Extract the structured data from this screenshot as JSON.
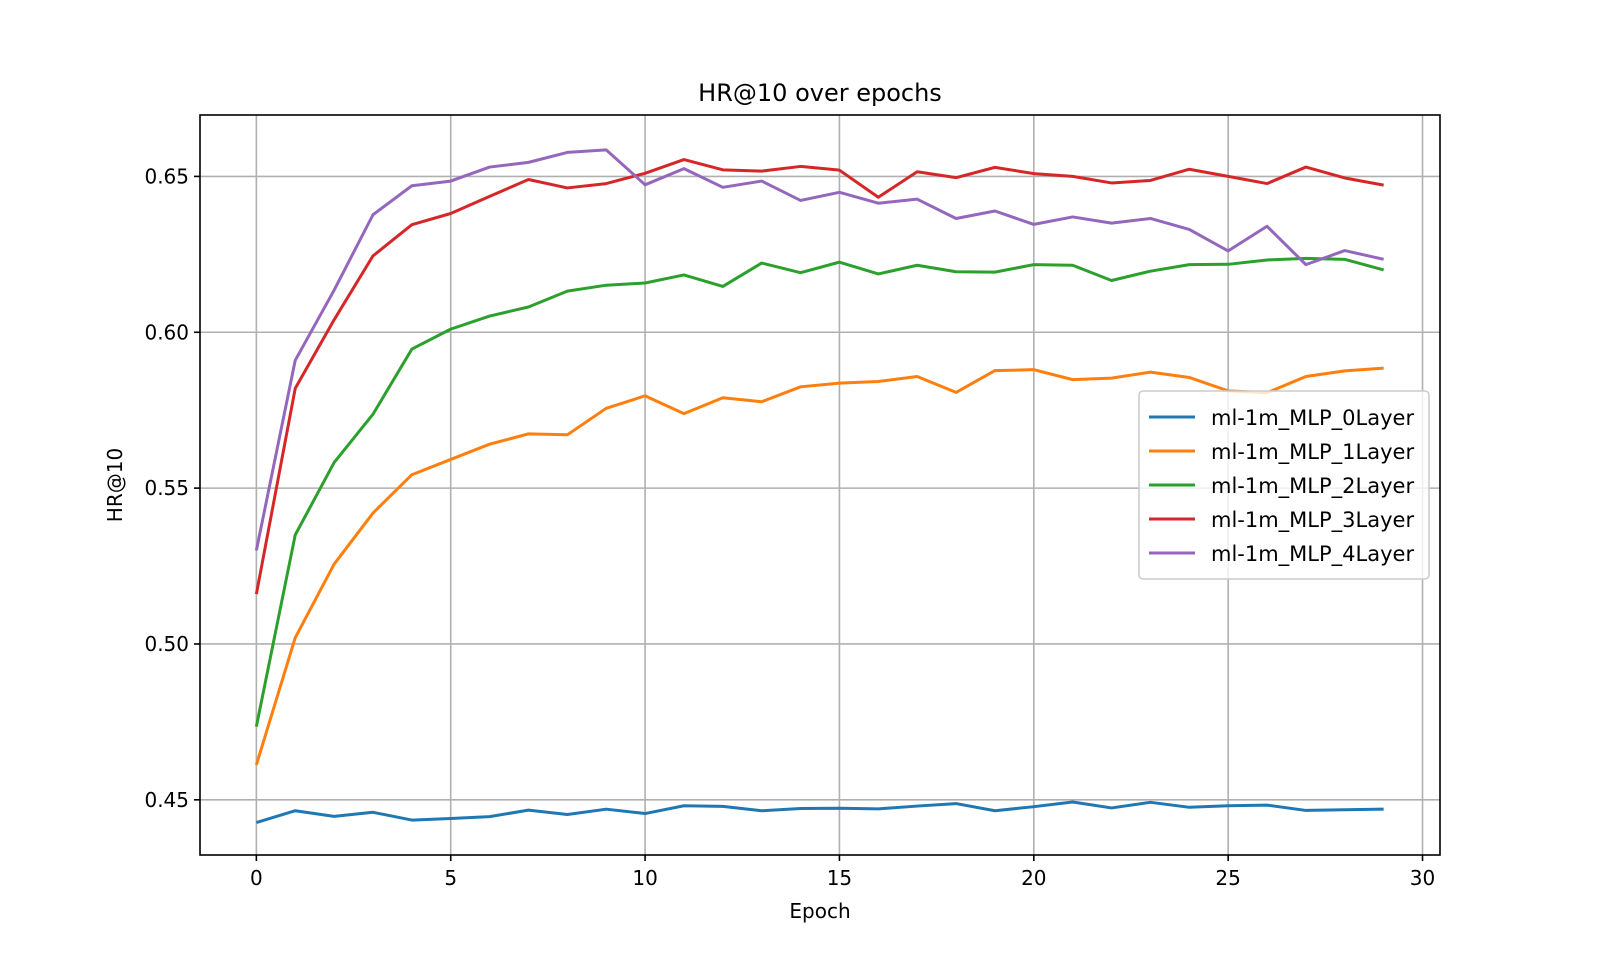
{
  "chart_data": {
    "type": "line",
    "title": "HR@10 over epochs",
    "xlabel": "Epoch",
    "ylabel": "HR@10",
    "xlim": [
      -1.45,
      30.45
    ],
    "ylim": [
      0.4323,
      0.6697
    ],
    "x_ticks": [
      0,
      5,
      10,
      15,
      20,
      25,
      30
    ],
    "x_tick_labels": [
      "0",
      "5",
      "10",
      "15",
      "20",
      "25",
      "30"
    ],
    "y_ticks": [
      0.45,
      0.5,
      0.55,
      0.6,
      0.65
    ],
    "y_tick_labels": [
      "0.45",
      "0.50",
      "0.55",
      "0.60",
      "0.65"
    ],
    "grid": true,
    "legend_position": "center-right",
    "x": [
      0,
      1,
      2,
      3,
      4,
      5,
      6,
      7,
      8,
      9,
      10,
      11,
      12,
      13,
      14,
      15,
      16,
      17,
      18,
      19,
      20,
      21,
      22,
      23,
      24,
      25,
      26,
      27,
      28,
      29
    ],
    "series": [
      {
        "name": "ml-1m_MLP_0Layer",
        "color": "#1f77b4",
        "values": [
          0.4427,
          0.4465,
          0.4447,
          0.446,
          0.4435,
          0.444,
          0.4446,
          0.4467,
          0.4453,
          0.447,
          0.4456,
          0.4481,
          0.4479,
          0.4465,
          0.4472,
          0.4473,
          0.4471,
          0.448,
          0.4488,
          0.4465,
          0.4478,
          0.4493,
          0.4474,
          0.4492,
          0.4476,
          0.4481,
          0.4483,
          0.4466,
          0.4468,
          0.447
        ]
      },
      {
        "name": "ml-1m_MLP_1Layer",
        "color": "#ff7f0e",
        "values": [
          0.4612,
          0.502,
          0.5256,
          0.542,
          0.5543,
          0.5592,
          0.5641,
          0.5674,
          0.5671,
          0.5756,
          0.5796,
          0.5739,
          0.579,
          0.5777,
          0.5825,
          0.5837,
          0.5842,
          0.5858,
          0.5807,
          0.5877,
          0.588,
          0.5848,
          0.5853,
          0.5872,
          0.5855,
          0.5812,
          0.5806,
          0.5858,
          0.5876,
          0.5885
        ]
      },
      {
        "name": "ml-1m_MLP_2Layer",
        "color": "#2ca02c",
        "values": [
          0.4735,
          0.535,
          0.5582,
          0.5737,
          0.5946,
          0.601,
          0.6052,
          0.6081,
          0.6132,
          0.6151,
          0.6158,
          0.6184,
          0.6147,
          0.6222,
          0.6191,
          0.6225,
          0.6187,
          0.6215,
          0.6194,
          0.6193,
          0.6217,
          0.6215,
          0.6166,
          0.6196,
          0.6217,
          0.6218,
          0.6232,
          0.6237,
          0.6234,
          0.62
        ]
      },
      {
        "name": "ml-1m_MLP_3Layer",
        "color": "#d62728",
        "values": [
          0.516,
          0.582,
          0.604,
          0.6245,
          0.6345,
          0.6381,
          0.6436,
          0.649,
          0.6463,
          0.6477,
          0.651,
          0.6554,
          0.6521,
          0.6517,
          0.6532,
          0.652,
          0.6433,
          0.6515,
          0.6496,
          0.6529,
          0.6509,
          0.65,
          0.6479,
          0.6487,
          0.6523,
          0.65,
          0.6477,
          0.653,
          0.6495,
          0.6472
        ]
      },
      {
        "name": "ml-1m_MLP_4Layer",
        "color": "#9467bd",
        "values": [
          0.53,
          0.591,
          0.6135,
          0.6377,
          0.647,
          0.6485,
          0.653,
          0.6545,
          0.6577,
          0.6585,
          0.6473,
          0.6525,
          0.6465,
          0.6485,
          0.6423,
          0.6449,
          0.6414,
          0.6427,
          0.6365,
          0.6389,
          0.6346,
          0.637,
          0.635,
          0.6365,
          0.633,
          0.6261,
          0.634,
          0.6217,
          0.6262,
          0.6234
        ]
      }
    ]
  }
}
